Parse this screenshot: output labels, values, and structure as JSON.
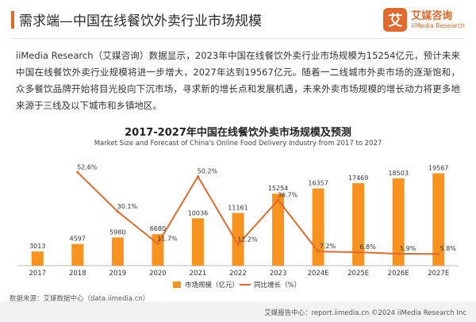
{
  "header": {
    "title": "需求端—中国在线餐饮外卖行业市场规模"
  },
  "logo": {
    "glyph": "艾",
    "name_cn": "艾媒咨询",
    "name_en": "iiMedia Research"
  },
  "paragraph": "iiMedia Research（艾媒咨询）数据显示，2023年中国在线餐饮外卖行业市场规模为15254亿元，预计未来中国在线餐饮外卖行业规模将进一步增大，2027年达到19567亿元。随着一二线城市外卖市场的逐渐饱和，众多餐饮品牌开始将目光投向下沉市场，寻求新的增长点和发展机遇，未来外卖市场规模的增长动力将更多地来源于三线及以下城市和乡镇地区。",
  "chart_data": {
    "type": "bar",
    "title": "2017-2027年中国在线餐饮外卖市场规模及预测",
    "subtitle": "Market Size and Forecast of China's Online Food Delivery Industry from 2017 to 2027",
    "categories": [
      "2017",
      "2018",
      "2019",
      "2020",
      "2021",
      "2022",
      "2023",
      "2024E",
      "2025E",
      "2026E",
      "2027E"
    ],
    "series": [
      {
        "name": "市场规模（亿元）",
        "type": "bar",
        "color": "#f7931e",
        "values": [
          3013,
          4597,
          5980,
          6680,
          10036,
          11161,
          15254,
          16357,
          17469,
          18503,
          19567
        ]
      },
      {
        "name": "同比增长（%）",
        "type": "line",
        "color": "#e06a2b",
        "values": [
          null,
          52.6,
          30.1,
          11.7,
          50.2,
          11.2,
          36.7,
          7.2,
          6.8,
          5.9,
          5.8
        ],
        "labels": [
          "",
          "52.6%",
          "30.1%",
          "11.7%",
          "50.2%",
          "11.2%",
          "36.7%",
          "7.2%",
          "6.8%",
          "5.9%",
          "5.8%"
        ]
      }
    ],
    "legend_position": "bottom",
    "grid": false
  },
  "footer": {
    "source": "数据来源：艾媒数据中心（data.iimedia.cn）",
    "report": "艾媒报告中心：report.iimedia.cn   ©2024  iiMedia Research Inc"
  }
}
